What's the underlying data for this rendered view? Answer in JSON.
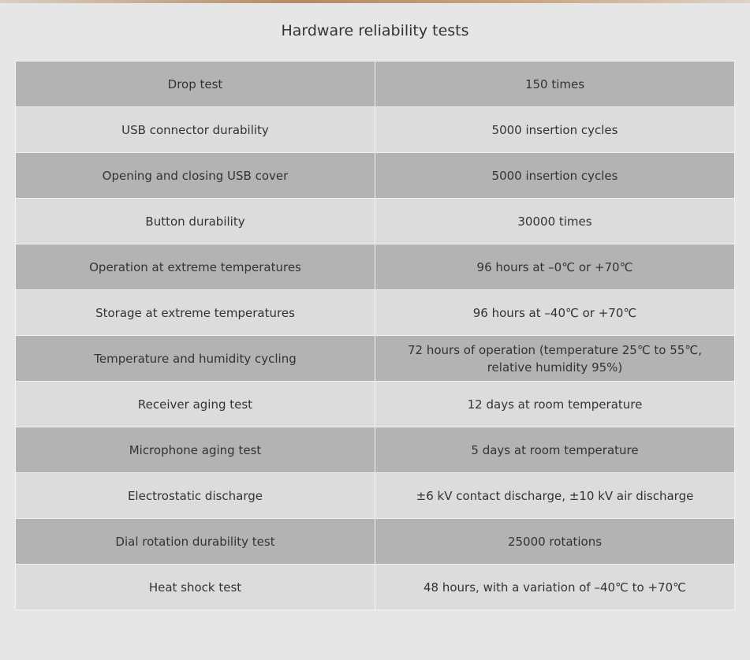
{
  "header": {
    "title": "Hardware reliability tests"
  },
  "table": {
    "rows": [
      [
        "Drop test",
        "150 times"
      ],
      [
        "USB connector durability",
        "5000 insertion cycles"
      ],
      [
        "Opening and closing USB cover",
        "5000 insertion cycles"
      ],
      [
        "Button durability",
        "30000 times"
      ],
      [
        "Operation at extreme temperatures",
        "96 hours at –0℃ or +70℃"
      ],
      [
        "Storage at extreme temperatures",
        "96 hours at –40℃ or +70℃"
      ],
      [
        "Temperature and humidity cycling",
        "72 hours of operation (temperature 25℃ to 55℃, relative humidity 95%)"
      ],
      [
        "Receiver aging test",
        "12 days at room temperature"
      ],
      [
        "Microphone aging test",
        "5 days at room temperature"
      ],
      [
        "Electrostatic discharge",
        "±6 kV contact discharge, ±10 kV air discharge"
      ],
      [
        "Dial rotation durability test",
        "25000 rotations"
      ],
      [
        "Heat shock test",
        "48 hours, with a variation of –40℃ to +70℃"
      ]
    ]
  }
}
